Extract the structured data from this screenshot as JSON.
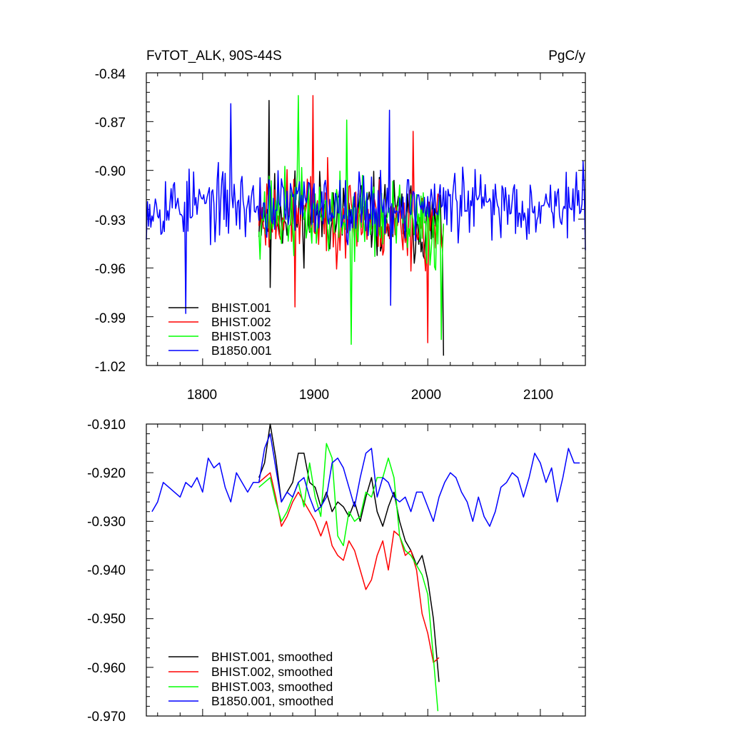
{
  "chart_data": [
    {
      "type": "line",
      "title_left": "FvTOT_ALK, 90S-44S",
      "title_right": "PgC/y",
      "xlim": [
        1750,
        2140
      ],
      "ylim": [
        -1.02,
        -0.84
      ],
      "x_ticks": [
        1800,
        1900,
        2000,
        2100
      ],
      "x_tick_labels": [
        "1800",
        "1900",
        "2000",
        "2100"
      ],
      "y_ticks": [
        -1.02,
        -0.99,
        -0.96,
        -0.93,
        -0.9,
        -0.87,
        -0.84
      ],
      "y_tick_labels": [
        "-1.02",
        "-0.99",
        "-0.96",
        "-0.93",
        "-0.90",
        "-0.87",
        "-0.84"
      ],
      "legend_position": "bottom-left",
      "series": [
        {
          "name": "BHIST.001",
          "color": "#000000",
          "start": 1850,
          "end": 2014,
          "base": -0.925,
          "amp": 0.022,
          "trend_end": -0.01,
          "seed": 11,
          "spikes": [
            [
              1859,
              -0.857
            ],
            [
              1860,
              -0.972
            ],
            [
              2014,
              -1.014
            ]
          ]
        },
        {
          "name": "BHIST.002",
          "color": "#ff0000",
          "start": 1850,
          "end": 2014,
          "base": -0.926,
          "amp": 0.022,
          "trend_end": -0.012,
          "seed": 23,
          "spikes": [
            [
              1898,
              -0.854
            ],
            [
              1882,
              -0.984
            ],
            [
              2000,
              -1.006
            ],
            [
              1987,
              -0.876
            ]
          ]
        },
        {
          "name": "BHIST.003",
          "color": "#00ff00",
          "start": 1850,
          "end": 2014,
          "base": -0.926,
          "amp": 0.022,
          "trend_end": -0.012,
          "seed": 37,
          "spikes": [
            [
              1885,
              -0.854
            ],
            [
              1932,
              -1.007
            ],
            [
              1928,
              -0.869
            ],
            [
              2012,
              -1.004
            ]
          ]
        },
        {
          "name": "B1850.001",
          "color": "#0000ff",
          "start": 1750,
          "end": 2140,
          "base": -0.921,
          "amp": 0.018,
          "trend_end": 0.0,
          "seed": 53,
          "spikes": [
            [
              1825,
              -0.859
            ],
            [
              1785,
              -0.988
            ],
            [
              1966,
              -0.863
            ],
            [
              1967,
              -0.983
            ]
          ]
        }
      ]
    },
    {
      "type": "line",
      "xlim": [
        1750,
        2140
      ],
      "ylim": [
        -0.97,
        -0.91
      ],
      "x_ticks": [
        1800,
        1900,
        2000,
        2100
      ],
      "y_ticks": [
        -0.97,
        -0.96,
        -0.95,
        -0.94,
        -0.93,
        -0.92,
        -0.91
      ],
      "y_tick_labels": [
        "-0.970",
        "-0.960",
        "-0.950",
        "-0.940",
        "-0.930",
        "-0.920",
        "-0.910"
      ],
      "legend_position": "bottom-left",
      "series": [
        {
          "name": "BHIST.001, smoothed",
          "color": "#000000",
          "x": [
            1850,
            1855,
            1860,
            1865,
            1870,
            1875,
            1880,
            1885,
            1890,
            1895,
            1900,
            1905,
            1910,
            1915,
            1920,
            1925,
            1930,
            1935,
            1940,
            1945,
            1950,
            1955,
            1960,
            1965,
            1970,
            1975,
            1980,
            1985,
            1990,
            1995,
            2000,
            2005,
            2010
          ],
          "y": [
            -0.921,
            -0.918,
            -0.91,
            -0.917,
            -0.926,
            -0.924,
            -0.922,
            -0.916,
            -0.916,
            -0.922,
            -0.923,
            -0.927,
            -0.924,
            -0.928,
            -0.926,
            -0.927,
            -0.929,
            -0.926,
            -0.93,
            -0.925,
            -0.921,
            -0.928,
            -0.931,
            -0.927,
            -0.924,
            -0.93,
            -0.934,
            -0.936,
            -0.939,
            -0.937,
            -0.942,
            -0.95,
            -0.963
          ]
        },
        {
          "name": "BHIST.002, smoothed",
          "color": "#ff0000",
          "x": [
            1850,
            1855,
            1860,
            1865,
            1870,
            1875,
            1880,
            1885,
            1890,
            1895,
            1900,
            1905,
            1910,
            1915,
            1920,
            1925,
            1930,
            1935,
            1940,
            1945,
            1950,
            1955,
            1960,
            1965,
            1970,
            1975,
            1980,
            1985,
            1990,
            1995,
            2000,
            2005,
            2010
          ],
          "y": [
            -0.922,
            -0.921,
            -0.92,
            -0.925,
            -0.931,
            -0.929,
            -0.926,
            -0.924,
            -0.926,
            -0.928,
            -0.93,
            -0.933,
            -0.93,
            -0.935,
            -0.937,
            -0.938,
            -0.934,
            -0.936,
            -0.94,
            -0.944,
            -0.942,
            -0.937,
            -0.934,
            -0.94,
            -0.932,
            -0.933,
            -0.937,
            -0.936,
            -0.94,
            -0.949,
            -0.953,
            -0.959,
            -0.958
          ]
        },
        {
          "name": "BHIST.003, smoothed",
          "color": "#00ff00",
          "x": [
            1850,
            1855,
            1860,
            1865,
            1870,
            1875,
            1880,
            1885,
            1890,
            1895,
            1900,
            1905,
            1910,
            1915,
            1920,
            1925,
            1930,
            1935,
            1940,
            1945,
            1950,
            1955,
            1960,
            1965,
            1970,
            1975,
            1980,
            1985,
            1990,
            1995,
            2000,
            2005,
            2009
          ],
          "y": [
            -0.923,
            -0.922,
            -0.921,
            -0.926,
            -0.93,
            -0.928,
            -0.925,
            -0.922,
            -0.927,
            -0.918,
            -0.925,
            -0.929,
            -0.914,
            -0.917,
            -0.933,
            -0.935,
            -0.928,
            -0.93,
            -0.929,
            -0.924,
            -0.925,
            -0.921,
            -0.921,
            -0.917,
            -0.921,
            -0.933,
            -0.936,
            -0.937,
            -0.939,
            -0.941,
            -0.945,
            -0.958,
            -0.969
          ]
        },
        {
          "name": "B1850.001, smoothed",
          "color": "#0000ff",
          "x": [
            1755,
            1760,
            1765,
            1770,
            1775,
            1780,
            1785,
            1790,
            1795,
            1800,
            1805,
            1810,
            1815,
            1820,
            1825,
            1830,
            1835,
            1840,
            1845,
            1850,
            1855,
            1860,
            1865,
            1870,
            1875,
            1880,
            1885,
            1890,
            1895,
            1900,
            1905,
            1910,
            1915,
            1920,
            1925,
            1930,
            1935,
            1940,
            1945,
            1950,
            1955,
            1960,
            1965,
            1970,
            1975,
            1980,
            1985,
            1990,
            1995,
            2000,
            2005,
            2010,
            2015,
            2020,
            2025,
            2030,
            2035,
            2040,
            2045,
            2050,
            2055,
            2060,
            2065,
            2070,
            2075,
            2080,
            2085,
            2090,
            2095,
            2100,
            2105,
            2110,
            2115,
            2120,
            2125,
            2130,
            2135
          ],
          "y": [
            -0.928,
            -0.926,
            -0.922,
            -0.923,
            -0.924,
            -0.925,
            -0.922,
            -0.923,
            -0.921,
            -0.924,
            -0.917,
            -0.919,
            -0.918,
            -0.923,
            -0.926,
            -0.92,
            -0.922,
            -0.924,
            -0.922,
            -0.922,
            -0.915,
            -0.912,
            -0.919,
            -0.926,
            -0.924,
            -0.925,
            -0.922,
            -0.921,
            -0.925,
            -0.928,
            -0.927,
            -0.925,
            -0.918,
            -0.917,
            -0.919,
            -0.923,
            -0.927,
            -0.921,
            -0.916,
            -0.915,
            -0.925,
            -0.921,
            -0.922,
            -0.925,
            -0.926,
            -0.925,
            -0.928,
            -0.924,
            -0.924,
            -0.927,
            -0.93,
            -0.925,
            -0.922,
            -0.92,
            -0.921,
            -0.924,
            -0.926,
            -0.93,
            -0.925,
            -0.929,
            -0.931,
            -0.928,
            -0.923,
            -0.922,
            -0.92,
            -0.921,
            -0.925,
            -0.921,
            -0.916,
            -0.918,
            -0.922,
            -0.919,
            -0.926,
            -0.921,
            -0.915,
            -0.918,
            -0.918
          ]
        }
      ]
    }
  ]
}
